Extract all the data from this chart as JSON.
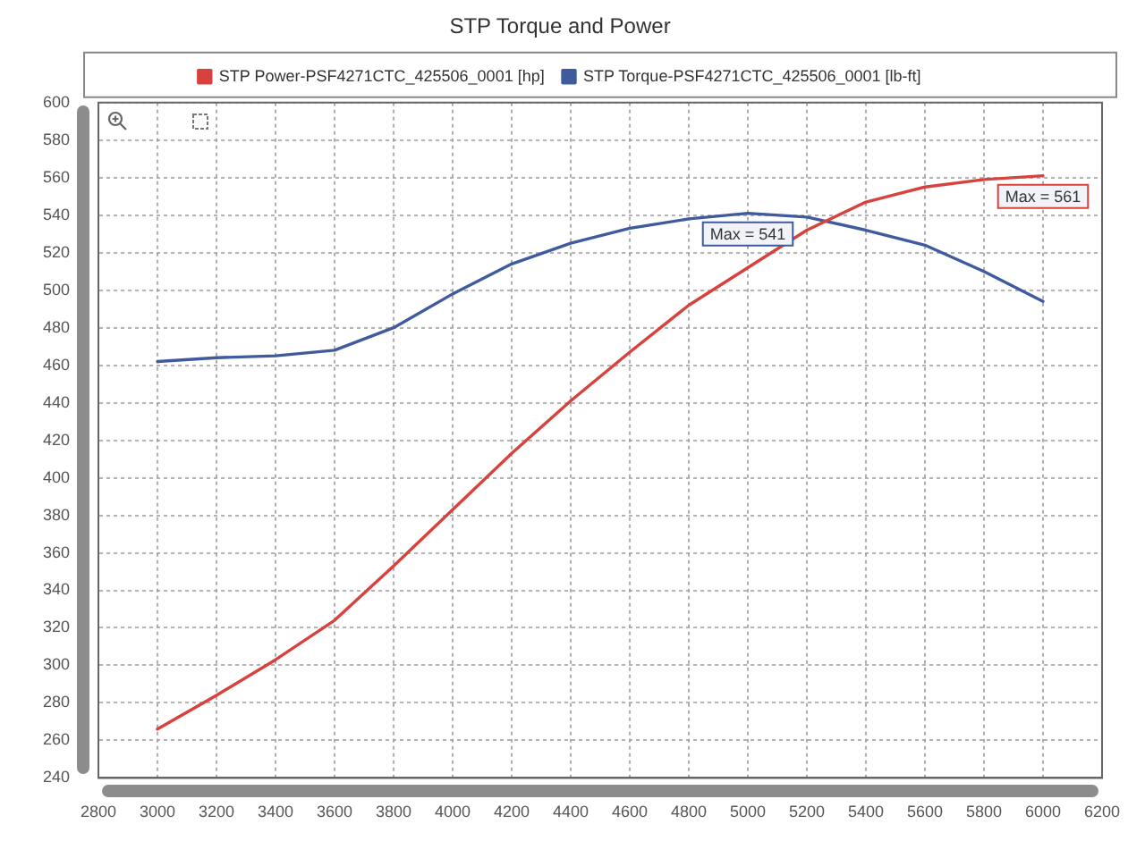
{
  "chart_data": {
    "type": "line",
    "title": "STP Torque and Power",
    "x": [
      3000,
      3200,
      3400,
      3600,
      3800,
      4000,
      4200,
      4400,
      4600,
      4800,
      5000,
      5200,
      5400,
      5600,
      5800,
      6000
    ],
    "series": [
      {
        "name": "STP Power-PSF4271CTC_425506_0001 [hp]",
        "color": "#d8423c",
        "values": [
          266,
          284,
          303,
          324,
          353,
          383,
          413,
          441,
          467,
          492,
          512,
          532,
          547,
          555,
          559,
          561
        ]
      },
      {
        "name": "STP Torque-PSF4271CTC_425506_0001 [lb-ft]",
        "color": "#3f5b9e",
        "values": [
          462,
          464,
          465,
          468,
          480,
          498,
          514,
          525,
          533,
          538,
          541,
          539,
          532,
          524,
          510,
          494
        ]
      }
    ],
    "xlim": [
      2800,
      6200
    ],
    "xticks": [
      2800,
      3000,
      3200,
      3400,
      3600,
      3800,
      4000,
      4200,
      4400,
      4600,
      4800,
      5000,
      5200,
      5400,
      5600,
      5800,
      6000,
      6200
    ],
    "ylim": [
      240,
      600
    ],
    "yticks": [
      240,
      260,
      280,
      300,
      320,
      340,
      360,
      380,
      400,
      420,
      440,
      460,
      480,
      500,
      520,
      540,
      560,
      580,
      600
    ],
    "grid": true,
    "legend": "top",
    "annotations": [
      {
        "text": "Max = 541",
        "x": 5000,
        "y": 541
      },
      {
        "text": "Max = 561",
        "x": 6000,
        "y": 561
      }
    ]
  }
}
